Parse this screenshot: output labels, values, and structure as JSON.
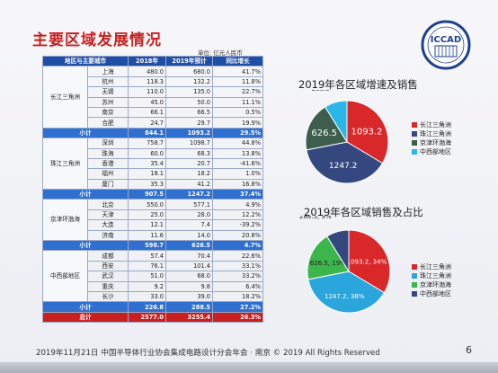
{
  "header": {
    "title": "主要区域发展情况",
    "logo_text": "ICCAD",
    "logo_subtext": "中国半导体行业协会集成电路设计分会"
  },
  "table": {
    "unit": "单位: 亿元人民币",
    "columns": [
      "地区与主要城市",
      "2018年",
      "2019年预计",
      "同比增长"
    ],
    "regions": [
      {
        "name": "长江三角洲",
        "rows": [
          {
            "city": "上海",
            "y2018": "480.0",
            "y2019": "680.0",
            "growth": "41.7%"
          },
          {
            "city": "杭州",
            "y2018": "118.3",
            "y2019": "132.2",
            "growth": "11.8%"
          },
          {
            "city": "无锡",
            "y2018": "110.0",
            "y2019": "135.0",
            "growth": "22.7%"
          },
          {
            "city": "苏州",
            "y2018": "45.0",
            "y2019": "50.0",
            "growth": "11.1%"
          },
          {
            "city": "南京",
            "y2018": "66.1",
            "y2019": "66.5",
            "growth": "0.5%"
          },
          {
            "city": "合肥",
            "y2018": "24.7",
            "y2019": "29.7",
            "growth": "19.9%"
          }
        ],
        "subtotal": {
          "label": "小计",
          "y2018": "844.1",
          "y2019": "1093.2",
          "growth": "29.5%"
        }
      },
      {
        "name": "珠江三角洲",
        "rows": [
          {
            "city": "深圳",
            "y2018": "758.7",
            "y2019": "1098.7",
            "growth": "44.8%"
          },
          {
            "city": "珠海",
            "y2018": "60.0",
            "y2019": "68.3",
            "growth": "13.8%"
          },
          {
            "city": "香港",
            "y2018": "35.4",
            "y2019": "20.7",
            "growth": "-41.6%"
          },
          {
            "city": "福州",
            "y2018": "18.1",
            "y2019": "18.2",
            "growth": "1.0%"
          },
          {
            "city": "厦门",
            "y2018": "35.3",
            "y2019": "41.2",
            "growth": "16.8%"
          }
        ],
        "subtotal": {
          "label": "小计",
          "y2018": "907.5",
          "y2019": "1247.2",
          "growth": "37.4%"
        }
      },
      {
        "name": "京津环渤海",
        "rows": [
          {
            "city": "北京",
            "y2018": "550.0",
            "y2019": "577.1",
            "growth": "4.9%"
          },
          {
            "city": "天津",
            "y2018": "25.0",
            "y2019": "28.0",
            "growth": "12.2%"
          },
          {
            "city": "大连",
            "y2018": "12.1",
            "y2019": "7.4",
            "growth": "-39.2%"
          },
          {
            "city": "济南",
            "y2018": "11.6",
            "y2019": "14.0",
            "growth": "20.8%"
          }
        ],
        "subtotal": {
          "label": "小计",
          "y2018": "598.7",
          "y2019": "626.5",
          "growth": "4.7%"
        }
      },
      {
        "name": "中西部地区",
        "rows": [
          {
            "city": "成都",
            "y2018": "57.4",
            "y2019": "70.4",
            "growth": "22.6%"
          },
          {
            "city": "西安",
            "y2018": "76.1",
            "y2019": "101.4",
            "growth": "33.1%"
          },
          {
            "city": "武汉",
            "y2018": "51.0",
            "y2019": "68.0",
            "growth": "33.2%"
          },
          {
            "city": "重庆",
            "y2018": "9.2",
            "y2019": "9.8",
            "growth": "6.4%"
          },
          {
            "city": "长沙",
            "y2018": "33.0",
            "y2019": "39.0",
            "growth": "18.2%"
          }
        ],
        "subtotal": {
          "label": "小计",
          "y2018": "226.8",
          "y2019": "288.5",
          "growth": "27.2%"
        }
      }
    ],
    "total": {
      "label": "总计",
      "y2018": "2577.0",
      "y2019": "3255.4",
      "growth": "26.3%"
    }
  },
  "colors": {
    "red": "#d8282a",
    "dark_blue": "#34487f",
    "dark_green": "#3d5e4c",
    "cyan": "#29b7e8",
    "green": "#3cb54a",
    "light_blue": "#2aa6dd",
    "table_header": "#1f4ea6",
    "subtotal": "#2f6fd0",
    "total": "#c8201f"
  },
  "chart_data": [
    {
      "type": "pie",
      "title": "2019年各区域增速及销售",
      "categories": [
        "长江三角洲",
        "珠江三角洲",
        "京津环渤海",
        "中西部地区"
      ],
      "values": [
        1093.2,
        1247.2,
        626.5,
        288.5
      ],
      "labels": [
        "1093.2",
        "1247.2",
        "626.5",
        "288.5"
      ],
      "legend_position": "right"
    },
    {
      "type": "pie",
      "title": "2019年各区域销售及占比",
      "categories": [
        "长江三角洲",
        "珠江三角洲",
        "京津环渤海",
        "中西部地区"
      ],
      "values": [
        1093.2,
        1247.2,
        626.5,
        288.5
      ],
      "labels": [
        "1093.2, 34%",
        "1247.2, 38%",
        "626.5, 19%",
        "288.5, 9%"
      ],
      "legend_position": "right"
    }
  ],
  "footer": {
    "text": "2019年11月21日 中国半导体行业协会集成电路设计分会年会 · 南京 © 2019 All Rights Reserved",
    "page": "6"
  }
}
